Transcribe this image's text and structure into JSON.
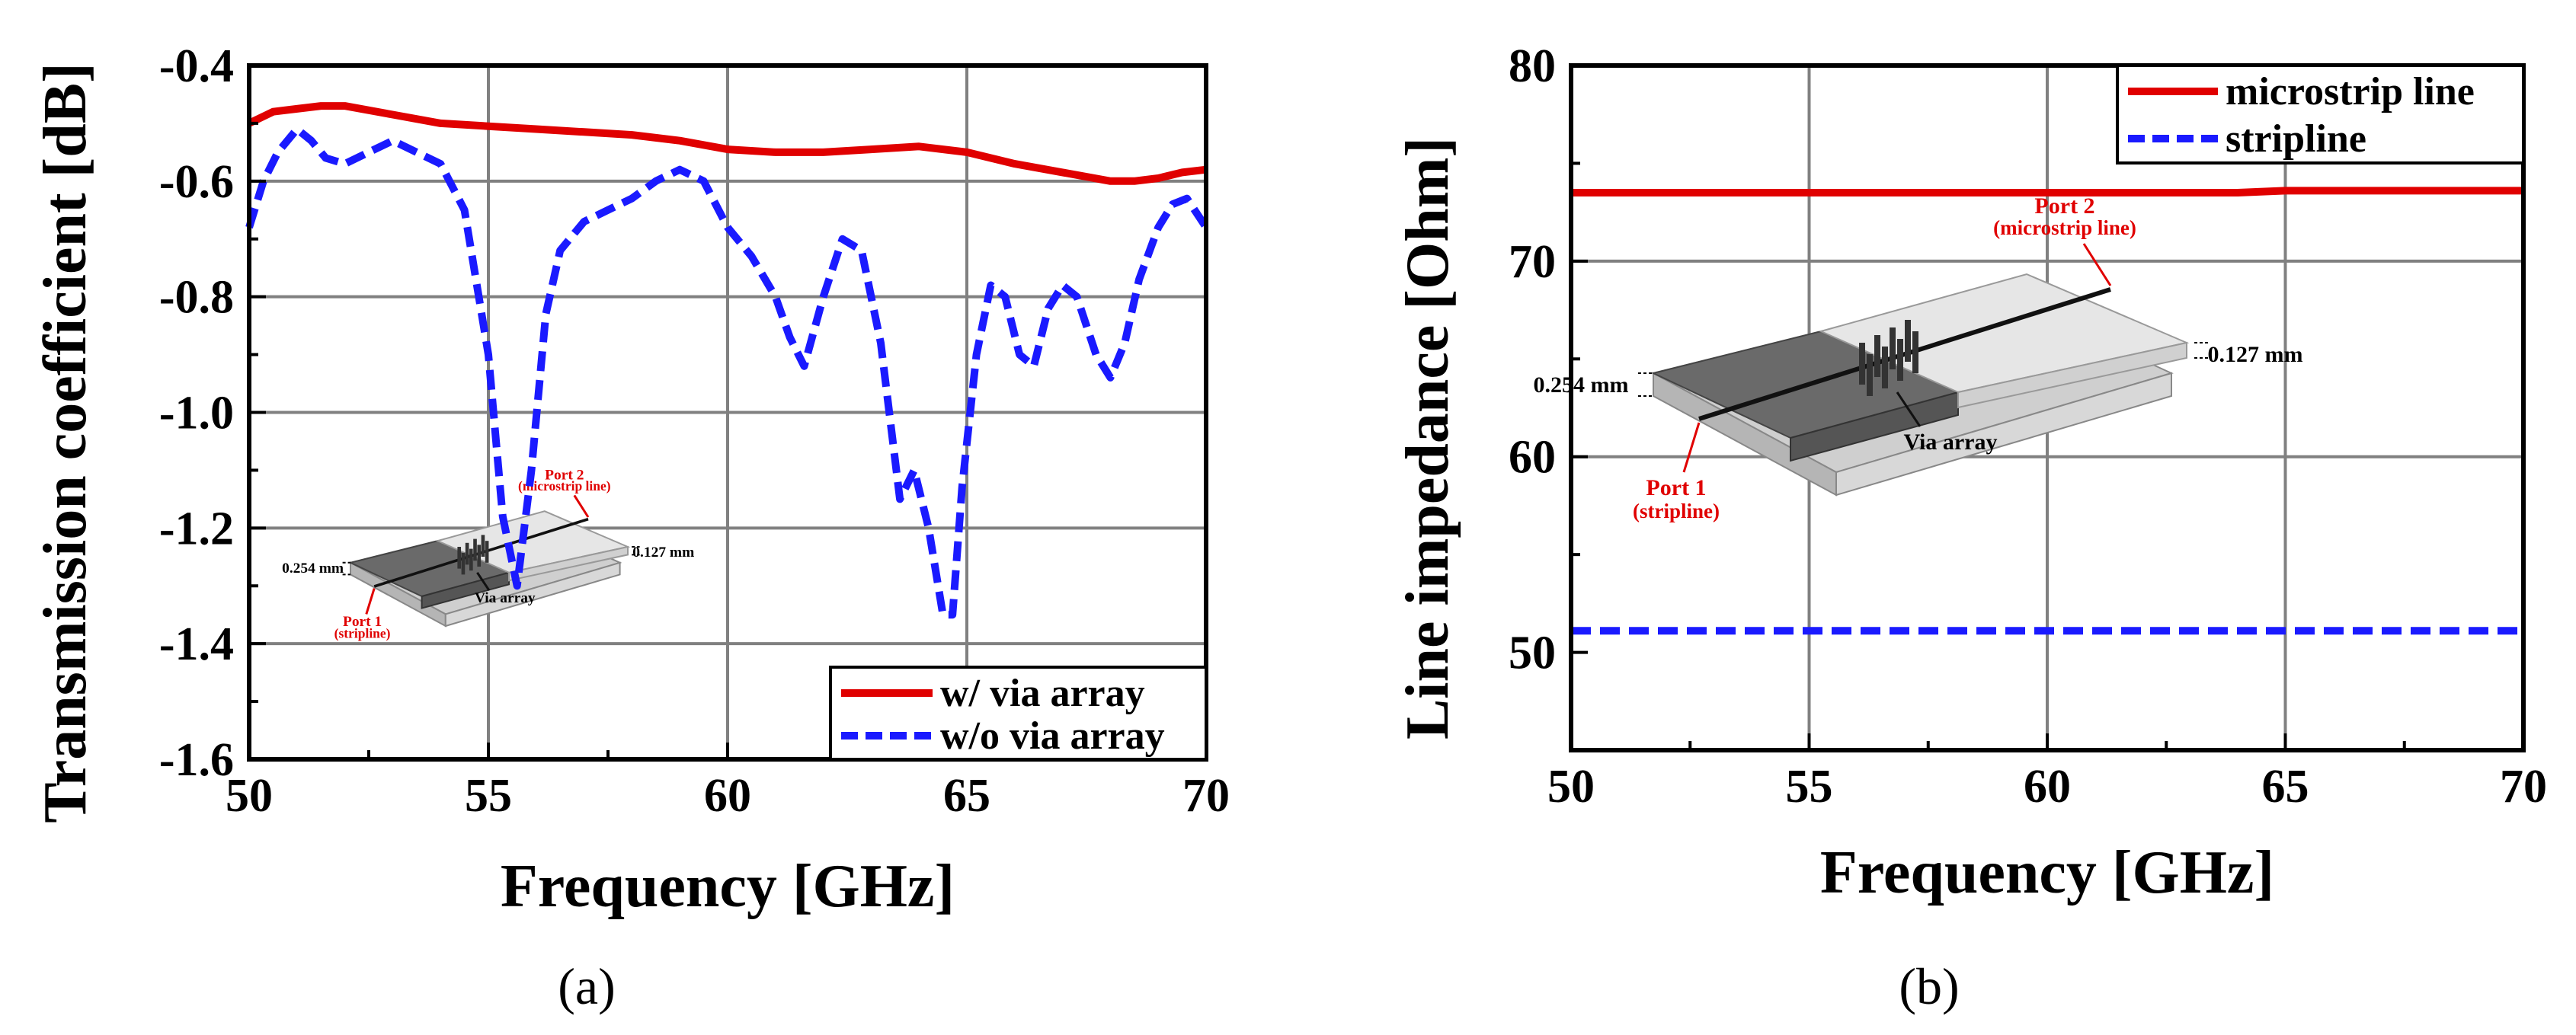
{
  "panels": {
    "a": {
      "label": "(a)"
    },
    "b": {
      "label": "(b)"
    }
  },
  "chart_data": [
    {
      "id": "a",
      "type": "line",
      "title": "",
      "xlabel": "Frequency [GHz]",
      "ylabel": "Transmission coefficient [dB]",
      "xlim": [
        50,
        70
      ],
      "ylim": [
        -1.6,
        -0.4
      ],
      "xticks": [
        50,
        55,
        60,
        65,
        70
      ],
      "xtick_labels": [
        "50",
        "55",
        "60",
        "65",
        "70"
      ],
      "yticks": [
        -1.6,
        -1.4,
        -1.2,
        -1.0,
        -0.8,
        -0.6,
        -0.4
      ],
      "ytick_labels": [
        "-1.6",
        "-1.4",
        "-1.2",
        "-1.0",
        "-0.8",
        "-0.6",
        "-0.4"
      ],
      "grid": true,
      "legend_position": "bottom-right",
      "series": [
        {
          "name": "w/ via array",
          "color": "#e00000",
          "dash": "solid",
          "x": [
            50,
            50.5,
            51,
            51.5,
            52,
            53,
            54,
            55,
            56,
            57,
            58,
            59,
            60,
            61,
            62,
            63,
            64,
            65,
            66,
            67,
            68,
            68.5,
            69,
            69.5,
            70
          ],
          "y": [
            -0.5,
            -0.48,
            -0.475,
            -0.47,
            -0.47,
            -0.485,
            -0.5,
            -0.505,
            -0.51,
            -0.515,
            -0.52,
            -0.53,
            -0.545,
            -0.55,
            -0.55,
            -0.545,
            -0.54,
            -0.55,
            -0.57,
            -0.585,
            -0.6,
            -0.6,
            -0.595,
            -0.585,
            -0.58
          ]
        },
        {
          "name": "w/o via array",
          "color": "#1a1aff",
          "dash": "dashed",
          "x": [
            50,
            50.3,
            50.6,
            51,
            51.3,
            51.6,
            52,
            52.5,
            53,
            53.5,
            54,
            54.5,
            55,
            55.3,
            55.6,
            55.9,
            56.2,
            56.5,
            57,
            57.5,
            58,
            58.5,
            59,
            59.5,
            60,
            60.5,
            61,
            61.3,
            61.6,
            62,
            62.4,
            62.8,
            63.2,
            63.6,
            63.9,
            64.2,
            64.5,
            64.7,
            64.9,
            65.2,
            65.5,
            65.8,
            66.1,
            66.4,
            66.7,
            67,
            67.3,
            67.7,
            68,
            68.3,
            68.6,
            69,
            69.3,
            69.6,
            70
          ],
          "y": [
            -0.68,
            -0.6,
            -0.55,
            -0.51,
            -0.53,
            -0.56,
            -0.57,
            -0.55,
            -0.53,
            -0.55,
            -0.57,
            -0.65,
            -0.9,
            -1.18,
            -1.3,
            -1.1,
            -0.83,
            -0.72,
            -0.67,
            -0.65,
            -0.63,
            -0.6,
            -0.58,
            -0.6,
            -0.68,
            -0.73,
            -0.8,
            -0.87,
            -0.92,
            -0.8,
            -0.7,
            -0.72,
            -0.88,
            -1.15,
            -1.1,
            -1.2,
            -1.35,
            -1.35,
            -1.13,
            -0.9,
            -0.78,
            -0.8,
            -0.9,
            -0.92,
            -0.82,
            -0.78,
            -0.8,
            -0.9,
            -0.94,
            -0.88,
            -0.77,
            -0.68,
            -0.64,
            -0.63,
            -0.68
          ]
        }
      ],
      "inset": {
        "port2": "Port 2",
        "port2_sub": "(microstrip line)",
        "port1": "Port 1",
        "port1_sub": "(stripline)",
        "thick_top": "0.127 mm",
        "thick_bottom": "0.254 mm",
        "via": "Via array"
      }
    },
    {
      "id": "b",
      "type": "line",
      "title": "",
      "xlabel": "Frequency [GHz]",
      "ylabel": "Line impedance [Ohm]",
      "xlim": [
        50,
        70
      ],
      "ylim": [
        45,
        80
      ],
      "xticks": [
        50,
        55,
        60,
        65,
        70
      ],
      "xtick_labels": [
        "50",
        "55",
        "60",
        "65",
        "70"
      ],
      "yticks": [
        50,
        60,
        70,
        80
      ],
      "ytick_labels": [
        "50",
        "60",
        "70",
        "80"
      ],
      "grid": true,
      "legend_position": "top-right",
      "series": [
        {
          "name": "microstrip line",
          "color": "#e00000",
          "dash": "solid",
          "x": [
            50,
            55,
            60,
            64,
            65,
            70
          ],
          "y": [
            73.5,
            73.5,
            73.5,
            73.5,
            73.6,
            73.6
          ]
        },
        {
          "name": "stripline",
          "color": "#1a1aff",
          "dash": "dashed",
          "x": [
            50,
            55,
            60,
            65,
            70
          ],
          "y": [
            51.1,
            51.1,
            51.1,
            51.1,
            51.1
          ]
        }
      ],
      "inset": {
        "port2": "Port 2",
        "port2_sub": "(microstrip line)",
        "port1": "Port 1",
        "port1_sub": "(stripline)",
        "thick_top": "0.127 mm",
        "thick_bottom": "0.254 mm",
        "via": "Via array"
      }
    }
  ]
}
